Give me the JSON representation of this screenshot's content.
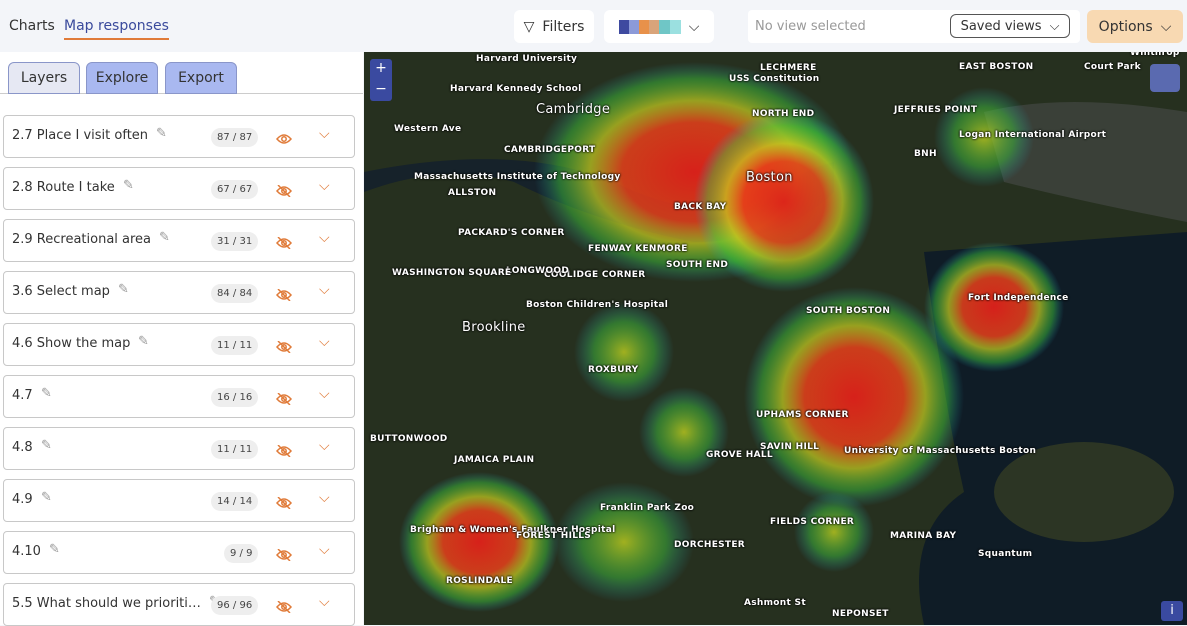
{
  "header": {
    "tabs": [
      "Charts",
      "Map responses"
    ],
    "filters": "Filters",
    "view_placeholder": "No view selected",
    "saved_views": "Saved views",
    "options": "Options"
  },
  "panel_tabs": [
    "Layers",
    "Explore",
    "Export"
  ],
  "layers": [
    {
      "name": "2.7 Place I visit often",
      "count": "87 / 87",
      "visible": true
    },
    {
      "name": "2.8 Route I take",
      "count": "67 / 67",
      "visible": false
    },
    {
      "name": "2.9 Recreational area",
      "count": "31 / 31",
      "visible": false
    },
    {
      "name": "3.6 Select map",
      "count": "84 / 84",
      "visible": false
    },
    {
      "name": "4.6 Show the map",
      "count": "11 / 11",
      "visible": false
    },
    {
      "name": "4.7",
      "count": "16 / 16",
      "visible": false
    },
    {
      "name": "4.8",
      "count": "11 / 11",
      "visible": false
    },
    {
      "name": "4.9",
      "count": "14 / 14",
      "visible": false
    },
    {
      "name": "4.10",
      "count": "9 / 9",
      "visible": false
    },
    {
      "name": "5.5 What should we prioriti…",
      "count": "96 / 96",
      "visible": false
    }
  ],
  "map": {
    "zoom_in": "+",
    "zoom_out": "−",
    "info": "i",
    "labels": [
      "Harvard University",
      "Cambridge",
      "Harvard Kennedy School",
      "Western Ave",
      "CAMBRIDGEPORT",
      "Massachusetts Institute of Technology",
      "ALLSTON",
      "PACKARD'S CORNER",
      "COOLIDGE CORNER",
      "BACK BAY",
      "Boston",
      "NORTH END",
      "USS Constitution",
      "LECHMERE",
      "EAST BOSTON",
      "JEFFRIES POINT",
      "Logan International Airport",
      "BNH",
      "Court Park",
      "Winthrop",
      "FENWAY KENMORE",
      "SOUTH END",
      "LONGWOOD",
      "WASHINGTON SQUARE",
      "Boston Children's Hospital",
      "Brookline",
      "SOUTH BOSTON",
      "Fort Independence",
      "ROXBURY",
      "UPHAMS CORNER",
      "SAVIN HILL",
      "University of Massachusetts Boston",
      "JAMAICA PLAIN",
      "GROVE HALL",
      "Franklin Park Zoo",
      "Brigham & Women's Faulkner Hospital",
      "FOREST HILLS",
      "DORCHESTER",
      "FIELDS CORNER",
      "MARINA BAY",
      "Squantum",
      "ROSLINDALE",
      "NEPONSET",
      "BUTTONWOOD",
      "Ashmont St"
    ]
  }
}
